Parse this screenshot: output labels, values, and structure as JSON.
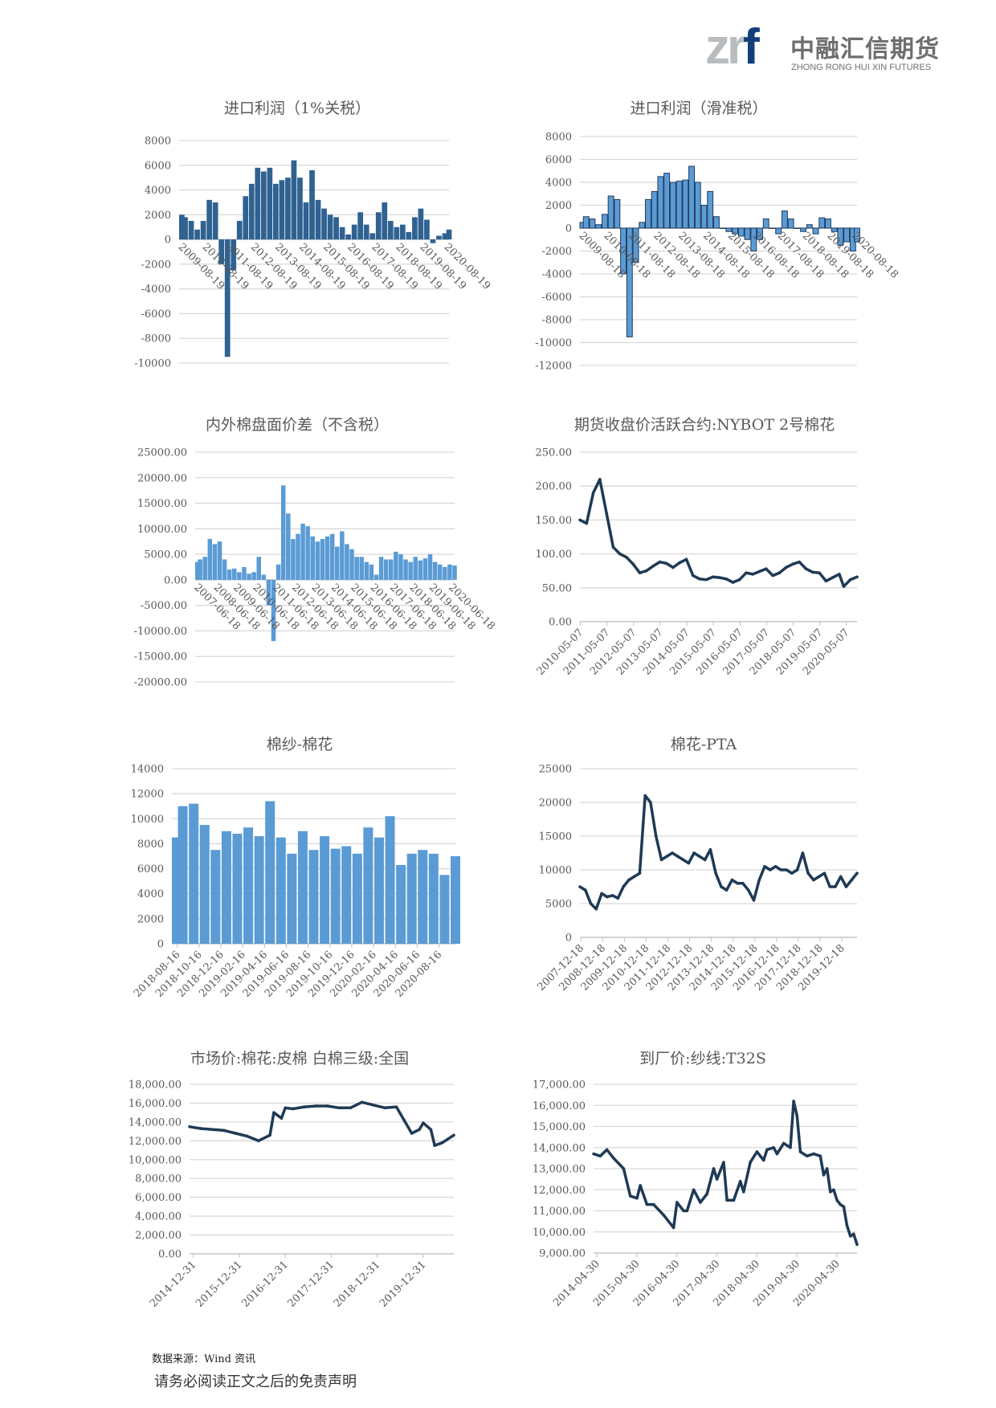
{
  "header": {
    "logo_text": "zrf",
    "company_cn": "中融汇信期货",
    "company_en": "ZHONG RONG HUI XIN FUTURES"
  },
  "chart_data": [
    {
      "type": "bar",
      "title": "进口利润（1%关税）",
      "color": "#2f6291",
      "ylim": [
        -10000,
        8000
      ],
      "ytick_labels": [
        "8000",
        "6000",
        "4000",
        "2000",
        "0",
        "-2000",
        "-4000",
        "-6000",
        "-8000",
        "-10000"
      ],
      "xtick_labels": [
        "2009-08-19",
        "2010-08-19",
        "2011-08-19",
        "2012-08-19",
        "2013-08-19",
        "2014-08-19",
        "2015-08-19",
        "2016-08-19",
        "2017-08-19",
        "2018-08-19",
        "2019-08-19",
        "2020-08-19"
      ],
      "x": [
        "2009-08",
        "2009-11",
        "2010-02",
        "2010-05",
        "2010-08",
        "2010-11",
        "2011-02",
        "2011-05",
        "2011-08",
        "2011-11",
        "2012-02",
        "2012-05",
        "2012-08",
        "2012-11",
        "2013-02",
        "2013-05",
        "2013-08",
        "2013-11",
        "2014-02",
        "2014-05",
        "2014-08",
        "2014-11",
        "2015-02",
        "2015-05",
        "2015-08",
        "2015-11",
        "2016-02",
        "2016-05",
        "2016-08",
        "2016-11",
        "2017-02",
        "2017-05",
        "2017-08",
        "2017-11",
        "2018-02",
        "2018-05",
        "2018-08",
        "2018-11",
        "2019-02",
        "2019-05",
        "2019-08",
        "2019-11",
        "2020-02",
        "2020-05",
        "2020-08",
        "2020-10"
      ],
      "values": [
        2000,
        1800,
        1500,
        800,
        1500,
        3200,
        3000,
        -2000,
        -9500,
        -2500,
        1500,
        3500,
        4500,
        5800,
        5500,
        5800,
        4500,
        4800,
        5000,
        6400,
        5000,
        3000,
        5600,
        3200,
        2500,
        2000,
        1800,
        1000,
        400,
        1200,
        2200,
        1200,
        500,
        2200,
        3000,
        1500,
        1000,
        1200,
        600,
        1800,
        2500,
        1600,
        -300,
        300,
        500,
        800
      ]
    },
    {
      "type": "bar",
      "title": "进口利润（滑准税）",
      "color": "#5b9bd5",
      "edge_color": "#1f3a5a",
      "ylim": [
        -12000,
        8000
      ],
      "ytick_labels": [
        "8000",
        "6000",
        "4000",
        "2000",
        "0",
        "-2000",
        "-4000",
        "-6000",
        "-8000",
        "-10000",
        "-12000"
      ],
      "xtick_labels": [
        "2009-08-18",
        "2010-08-18",
        "2011-08-18",
        "2012-08-18",
        "2013-08-18",
        "2014-08-18",
        "2015-08-18",
        "2016-08-18",
        "2017-08-18",
        "2018-08-18",
        "2019-08-18",
        "2020-08-18"
      ],
      "x": [
        "2009-08",
        "2009-11",
        "2010-02",
        "2010-05",
        "2010-08",
        "2010-11",
        "2011-02",
        "2011-05",
        "2011-08",
        "2011-11",
        "2012-02",
        "2012-05",
        "2012-08",
        "2012-11",
        "2013-02",
        "2013-05",
        "2013-08",
        "2013-11",
        "2014-02",
        "2014-05",
        "2014-08",
        "2014-11",
        "2015-02",
        "2015-05",
        "2015-08",
        "2015-11",
        "2016-02",
        "2016-05",
        "2016-08",
        "2016-11",
        "2017-02",
        "2017-05",
        "2017-08",
        "2017-11",
        "2018-02",
        "2018-05",
        "2018-08",
        "2018-11",
        "2019-02",
        "2019-05",
        "2019-08",
        "2019-11",
        "2020-02",
        "2020-05",
        "2020-08",
        "2020-10"
      ],
      "values": [
        500,
        1000,
        800,
        300,
        1200,
        2800,
        2500,
        -4000,
        -9500,
        -3000,
        500,
        2500,
        3200,
        4500,
        4800,
        4000,
        4100,
        4200,
        5400,
        4000,
        2000,
        3200,
        1000,
        0,
        -300,
        -500,
        -700,
        -1000,
        -2000,
        -1000,
        800,
        0,
        -500,
        1500,
        800,
        0,
        -300,
        300,
        -500,
        900,
        800,
        -300,
        -1500,
        -1200,
        -2000,
        -1200
      ]
    },
    {
      "type": "bar",
      "title": "内外棉盘面价差（不含税）",
      "color": "#5b9bd5",
      "ylim": [
        -20000,
        25000
      ],
      "ytick_labels": [
        "25000.00",
        "20000.00",
        "15000.00",
        "10000.00",
        "5000.00",
        "0.00",
        "-5000.00",
        "-10000.00",
        "-15000.00",
        "-20000.00"
      ],
      "xtick_labels": [
        "2007-06-18",
        "2008-06-18",
        "2009-06-18",
        "2010-06-18",
        "2011-06-18",
        "2012-06-18",
        "2013-06-18",
        "2014-06-18",
        "2015-06-18",
        "2016-06-18",
        "2017-06-18",
        "2018-06-18",
        "2019-06-18",
        "2020-06-18"
      ],
      "x": [
        "2007-06",
        "2007-09",
        "2007-12",
        "2008-03",
        "2008-06",
        "2008-09",
        "2008-12",
        "2009-03",
        "2009-06",
        "2009-09",
        "2009-12",
        "2010-03",
        "2010-06",
        "2010-09",
        "2010-12",
        "2011-03",
        "2011-06",
        "2011-09",
        "2011-12",
        "2012-03",
        "2012-06",
        "2012-09",
        "2012-12",
        "2013-03",
        "2013-06",
        "2013-09",
        "2013-12",
        "2014-03",
        "2014-06",
        "2014-09",
        "2014-12",
        "2015-03",
        "2015-06",
        "2015-09",
        "2015-12",
        "2016-03",
        "2016-06",
        "2016-09",
        "2016-12",
        "2017-03",
        "2017-06",
        "2017-09",
        "2017-12",
        "2018-03",
        "2018-06",
        "2018-09",
        "2018-12",
        "2019-03",
        "2019-06",
        "2019-09",
        "2019-12",
        "2020-03",
        "2020-06",
        "2020-09"
      ],
      "values": [
        3500,
        4000,
        4500,
        8000,
        7000,
        7500,
        4000,
        2000,
        2200,
        1500,
        2500,
        1200,
        1500,
        4500,
        1000,
        -5000,
        -12000,
        3000,
        18500,
        13000,
        8000,
        9000,
        11000,
        10500,
        8500,
        7500,
        8000,
        8500,
        9000,
        6500,
        9500,
        7000,
        6000,
        4500,
        4500,
        3500,
        3000,
        1000,
        4500,
        4000,
        4000,
        5500,
        5000,
        4000,
        3500,
        4500,
        3800,
        4200,
        5000,
        3500,
        3000,
        2500,
        3000,
        2800
      ]
    },
    {
      "type": "line",
      "title": "期货收盘价活跃合约:NYBOT 2号棉花",
      "color": "#1f3a55",
      "ylim": [
        0,
        250
      ],
      "ytick_labels": [
        "250.00",
        "200.00",
        "150.00",
        "100.00",
        "50.00",
        "0.00"
      ],
      "xtick_labels": [
        "2010-05-07",
        "2011-05-07",
        "2012-05-07",
        "2013-05-07",
        "2014-05-07",
        "2015-05-07",
        "2016-05-07",
        "2017-05-07",
        "2018-05-07",
        "2019-05-07",
        "2020-05-07"
      ],
      "x": [
        "2010-05",
        "2010-08",
        "2010-11",
        "2011-02",
        "2011-05",
        "2011-08",
        "2011-11",
        "2012-02",
        "2012-05",
        "2012-08",
        "2012-11",
        "2013-02",
        "2013-05",
        "2013-08",
        "2013-11",
        "2014-02",
        "2014-05",
        "2014-08",
        "2014-11",
        "2015-02",
        "2015-05",
        "2015-08",
        "2015-11",
        "2016-02",
        "2016-05",
        "2016-08",
        "2016-11",
        "2017-02",
        "2017-05",
        "2017-08",
        "2017-11",
        "2018-02",
        "2018-05",
        "2018-08",
        "2018-11",
        "2019-02",
        "2019-05",
        "2019-08",
        "2019-11",
        "2020-02",
        "2020-04",
        "2020-07",
        "2020-10"
      ],
      "values": [
        150,
        145,
        190,
        210,
        160,
        110,
        100,
        95,
        85,
        72,
        75,
        82,
        88,
        86,
        80,
        87,
        92,
        68,
        63,
        62,
        66,
        65,
        63,
        58,
        62,
        72,
        70,
        74,
        78,
        68,
        72,
        80,
        85,
        88,
        78,
        73,
        72,
        60,
        65,
        70,
        52,
        62,
        66
      ]
    },
    {
      "type": "bar",
      "title": "棉纱-棉花",
      "color": "#5b9bd5",
      "ylim": [
        0,
        14000
      ],
      "ytick_labels": [
        "14000",
        "12000",
        "10000",
        "8000",
        "6000",
        "4000",
        "2000",
        "0"
      ],
      "xtick_labels": [
        "2018-08-16",
        "2018-10-16",
        "2018-12-16",
        "2019-02-16",
        "2019-04-16",
        "2019-06-16",
        "2019-08-16",
        "2019-10-16",
        "2019-12-16",
        "2020-02-16",
        "2020-04-16",
        "2020-06-16",
        "2020-08-16"
      ],
      "x": [
        "2018-08",
        "2018-09",
        "2018-10",
        "2018-11",
        "2018-12",
        "2019-01",
        "2019-02",
        "2019-03",
        "2019-04",
        "2019-05",
        "2019-06",
        "2019-07",
        "2019-08",
        "2019-09",
        "2019-10",
        "2019-11",
        "2019-12",
        "2020-01",
        "2020-02",
        "2020-03",
        "2020-04",
        "2020-05",
        "2020-06",
        "2020-07",
        "2020-08",
        "2020-09",
        "2020-10"
      ],
      "values": [
        8500,
        11000,
        11200,
        9500,
        7500,
        9000,
        8800,
        9300,
        8600,
        11400,
        8500,
        7200,
        9000,
        7500,
        8600,
        7600,
        7800,
        7200,
        9300,
        8500,
        10200,
        6300,
        7200,
        7500,
        7200,
        5500,
        7000
      ]
    },
    {
      "type": "line",
      "title": "棉花-PTA",
      "color": "#1f3a55",
      "ylim": [
        0,
        25000
      ],
      "ytick_labels": [
        "25000",
        "20000",
        "15000",
        "10000",
        "5000",
        "0"
      ],
      "xtick_labels": [
        "2007-12-18",
        "2008-12-18",
        "2009-12-18",
        "2010-12-18",
        "2011-12-18",
        "2012-12-18",
        "2013-12-18",
        "2014-12-18",
        "2015-12-18",
        "2016-12-18",
        "2017-12-18",
        "2018-12-18",
        "2019-12-18"
      ],
      "x": [
        "2007-12",
        "2008-03",
        "2008-06",
        "2008-09",
        "2008-12",
        "2009-03",
        "2009-06",
        "2009-09",
        "2009-12",
        "2010-03",
        "2010-06",
        "2010-09",
        "2010-12",
        "2011-03",
        "2011-06",
        "2011-09",
        "2011-12",
        "2012-03",
        "2012-06",
        "2012-09",
        "2012-12",
        "2013-03",
        "2013-06",
        "2013-09",
        "2013-12",
        "2014-03",
        "2014-06",
        "2014-09",
        "2014-12",
        "2015-03",
        "2015-06",
        "2015-09",
        "2015-12",
        "2016-03",
        "2016-06",
        "2016-09",
        "2016-12",
        "2017-03",
        "2017-06",
        "2017-09",
        "2017-12",
        "2018-03",
        "2018-06",
        "2018-09",
        "2018-12",
        "2019-03",
        "2019-06",
        "2019-09",
        "2019-12",
        "2020-03",
        "2020-06",
        "2020-09"
      ],
      "values": [
        7500,
        7000,
        5000,
        4200,
        6500,
        6000,
        6200,
        5800,
        7500,
        8500,
        9000,
        9500,
        21000,
        20000,
        15000,
        11500,
        12000,
        12500,
        12000,
        11500,
        11000,
        12500,
        12000,
        11500,
        13000,
        9500,
        7500,
        7000,
        8500,
        8000,
        8000,
        7000,
        5500,
        8500,
        10500,
        10000,
        10500,
        10000,
        10000,
        9500,
        10000,
        12500,
        9500,
        8500,
        9000,
        9500,
        7500,
        7500,
        9000,
        7500,
        8500,
        9500
      ]
    },
    {
      "type": "line",
      "title": "市场价:棉花:皮棉 白棉三级:全国",
      "color": "#1f3a55",
      "ylim": [
        0,
        18000
      ],
      "ytick_labels": [
        "18,000.00",
        "16,000.00",
        "14,000.00",
        "12,000.00",
        "10,000.00",
        "8,000.00",
        "6,000.00",
        "4,000.00",
        "2,000.00",
        "0.00"
      ],
      "xtick_labels": [
        "2014-12-31",
        "2015-12-31",
        "2016-12-31",
        "2017-12-31",
        "2018-12-31",
        "2019-12-31"
      ],
      "x": [
        "2014-12",
        "2015-03",
        "2015-06",
        "2015-09",
        "2015-12",
        "2016-03",
        "2016-06",
        "2016-09",
        "2016-10",
        "2016-12",
        "2017-01",
        "2017-03",
        "2017-06",
        "2017-09",
        "2017-12",
        "2018-03",
        "2018-06",
        "2018-09",
        "2018-12",
        "2019-03",
        "2019-06",
        "2019-08",
        "2019-10",
        "2019-12",
        "2020-01",
        "2020-03",
        "2020-04",
        "2020-06",
        "2020-09"
      ],
      "values": [
        13500,
        13300,
        13200,
        13100,
        12800,
        12500,
        12000,
        12600,
        15000,
        14400,
        15500,
        15400,
        15600,
        15700,
        15700,
        15500,
        15500,
        16100,
        15800,
        15500,
        15600,
        14200,
        12800,
        13200,
        13900,
        13200,
        11500,
        11800,
        12600
      ]
    },
    {
      "type": "line",
      "title": "到厂价:纱线:T32S",
      "color": "#1f3a55",
      "ylim": [
        9000,
        17000
      ],
      "ytick_labels": [
        "17,000.00",
        "16,000.00",
        "15,000.00",
        "14,000.00",
        "13,000.00",
        "12,000.00",
        "11,000.00",
        "10,000.00",
        "9,000.00"
      ],
      "xtick_labels": [
        "2014-04-30",
        "2015-04-30",
        "2016-04-30",
        "2017-04-30",
        "2018-04-30",
        "2019-04-30",
        "2020-04-30"
      ],
      "x": [
        "2014-04",
        "2014-06",
        "2014-08",
        "2014-10",
        "2015-01",
        "2015-03",
        "2015-05",
        "2015-06",
        "2015-08",
        "2015-10",
        "2016-01",
        "2016-04",
        "2016-05",
        "2016-07",
        "2016-08",
        "2016-10",
        "2016-12",
        "2017-02",
        "2017-04",
        "2017-05",
        "2017-07",
        "2017-08",
        "2017-10",
        "2017-12",
        "2018-01",
        "2018-03",
        "2018-05",
        "2018-07",
        "2018-08",
        "2018-10",
        "2018-11",
        "2019-01",
        "2019-03",
        "2019-04",
        "2019-05",
        "2019-06",
        "2019-08",
        "2019-10",
        "2019-12",
        "2020-01",
        "2020-02",
        "2020-03",
        "2020-04",
        "2020-05",
        "2020-06",
        "2020-07",
        "2020-08",
        "2020-09",
        "2020-10",
        "2020-11"
      ],
      "values": [
        13700,
        13600,
        13900,
        13500,
        13000,
        11700,
        11600,
        12200,
        11300,
        11300,
        10800,
        10200,
        11400,
        11000,
        11000,
        12000,
        11400,
        11800,
        13000,
        12500,
        13300,
        11500,
        11500,
        12400,
        11900,
        13300,
        13800,
        13400,
        13900,
        14000,
        13700,
        14200,
        14000,
        16200,
        15500,
        13800,
        13600,
        13700,
        13600,
        12700,
        13000,
        11900,
        12000,
        11500,
        11300,
        11200,
        10300,
        9800,
        9900,
        9400
      ]
    }
  ],
  "footer": {
    "source": "数据来源：Wind 资讯",
    "disclaimer": "请务必阅读正文之后的免责声明"
  }
}
